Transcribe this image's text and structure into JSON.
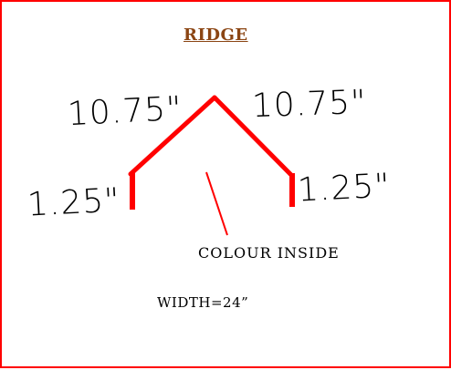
{
  "title": "RIDGE",
  "dimensions": {
    "left_top": "10.75\"",
    "right_top": "10.75\"",
    "left_side": "1.25\"",
    "right_side": "1.25\""
  },
  "notes": {
    "colour": "COLOUR  INSIDE",
    "width": "WIDTH=24”"
  },
  "colors": {
    "profile": "#ff0000",
    "title": "#8b4513",
    "border": "#ff0000"
  }
}
